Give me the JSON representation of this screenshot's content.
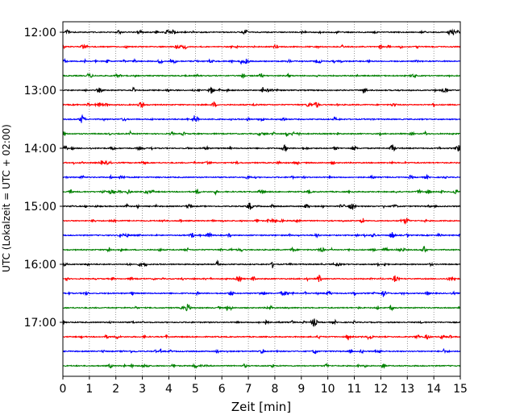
{
  "chart_data": {
    "type": "line",
    "title": "",
    "xlabel": "Zeit  [min]",
    "ylabel": "UTC (Lokalzeit = UTC + 02:00)",
    "xlim": [
      0,
      15
    ],
    "x_ticks": [
      0,
      1,
      2,
      3,
      4,
      5,
      6,
      7,
      8,
      9,
      10,
      11,
      12,
      13,
      14,
      15
    ],
    "x_tick_labels": [
      "0",
      "1",
      "2",
      "3",
      "4",
      "5",
      "6",
      "7",
      "8",
      "9",
      "10",
      "11",
      "12",
      "13",
      "14",
      "15"
    ],
    "y_tick_labels": [
      "12:00",
      "13:00",
      "14:00",
      "15:00",
      "16:00",
      "17:00"
    ],
    "row_interval_minutes": 15,
    "grid": "vertical dotted lines at each minute",
    "trace_colors": [
      "#000000",
      "#ff0000",
      "#0000ff",
      "#008000"
    ],
    "rows": [
      {
        "start": "12:00",
        "color": "#000000"
      },
      {
        "start": "12:15",
        "color": "#ff0000"
      },
      {
        "start": "12:30",
        "color": "#0000ff"
      },
      {
        "start": "12:45",
        "color": "#008000"
      },
      {
        "start": "13:00",
        "color": "#000000"
      },
      {
        "start": "13:15",
        "color": "#ff0000"
      },
      {
        "start": "13:30",
        "color": "#0000ff"
      },
      {
        "start": "13:45",
        "color": "#008000"
      },
      {
        "start": "14:00",
        "color": "#000000"
      },
      {
        "start": "14:15",
        "color": "#ff0000"
      },
      {
        "start": "14:30",
        "color": "#0000ff"
      },
      {
        "start": "14:45",
        "color": "#008000"
      },
      {
        "start": "15:00",
        "color": "#000000"
      },
      {
        "start": "15:15",
        "color": "#ff0000"
      },
      {
        "start": "15:30",
        "color": "#0000ff"
      },
      {
        "start": "15:45",
        "color": "#008000"
      },
      {
        "start": "16:00",
        "color": "#000000"
      },
      {
        "start": "16:15",
        "color": "#ff0000"
      },
      {
        "start": "16:30",
        "color": "#0000ff"
      },
      {
        "start": "16:45",
        "color": "#008000"
      },
      {
        "start": "17:00",
        "color": "#000000"
      },
      {
        "start": "17:15",
        "color": "#ff0000"
      },
      {
        "start": "17:30",
        "color": "#0000ff"
      },
      {
        "start": "17:45",
        "color": "#008000"
      }
    ]
  }
}
